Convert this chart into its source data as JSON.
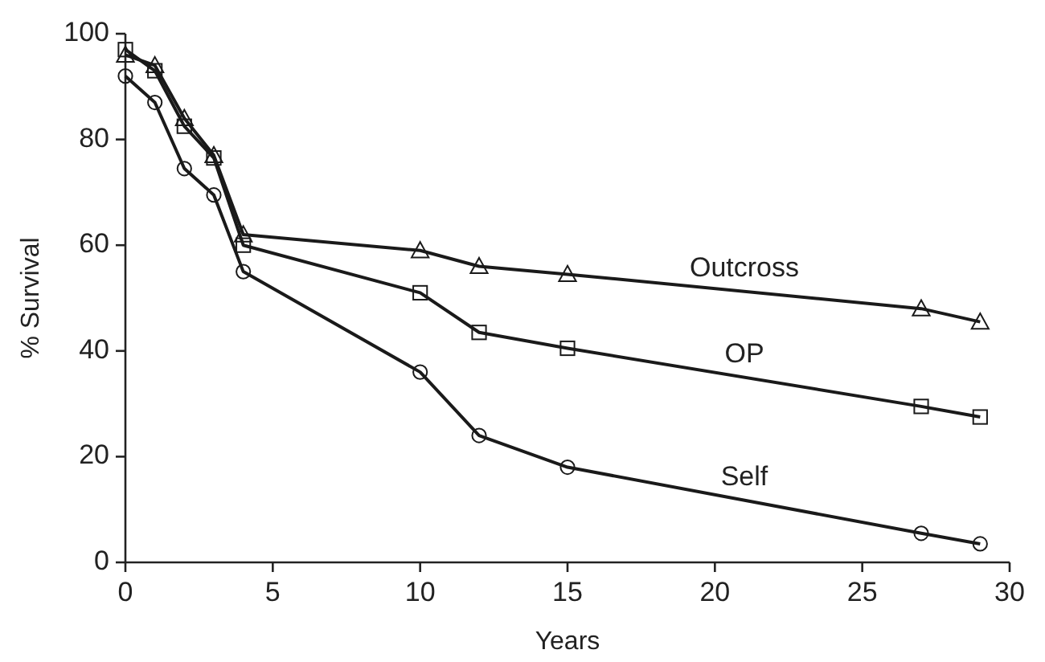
{
  "chart_data": {
    "type": "line",
    "xlabel": "Years",
    "ylabel": "% Survival",
    "x": [
      0,
      1,
      2,
      3,
      4,
      10,
      12,
      15,
      27,
      29
    ],
    "xlim": [
      0,
      30
    ],
    "xticks": [
      0,
      5,
      10,
      15,
      20,
      25,
      30
    ],
    "ylim": [
      0,
      100
    ],
    "yticks": [
      0,
      20,
      40,
      60,
      80,
      100
    ],
    "grid": false,
    "line_style": "solid",
    "series": [
      {
        "name": "Outcross",
        "color": "#1a1a1a",
        "marker": "triangle",
        "values": [
          96,
          94,
          84,
          77,
          62,
          59,
          56,
          54.5,
          48,
          45.5
        ]
      },
      {
        "name": "OP",
        "color": "#1a1a1a",
        "marker": "square",
        "values": [
          97,
          93,
          82.5,
          76.5,
          60,
          51,
          43.5,
          40.5,
          29.5,
          27.5
        ]
      },
      {
        "name": "Self",
        "color": "#1a1a1a",
        "marker": "circle",
        "values": [
          92,
          87,
          74.5,
          69.5,
          55,
          36,
          24,
          18,
          5.5,
          3.5
        ]
      }
    ]
  }
}
